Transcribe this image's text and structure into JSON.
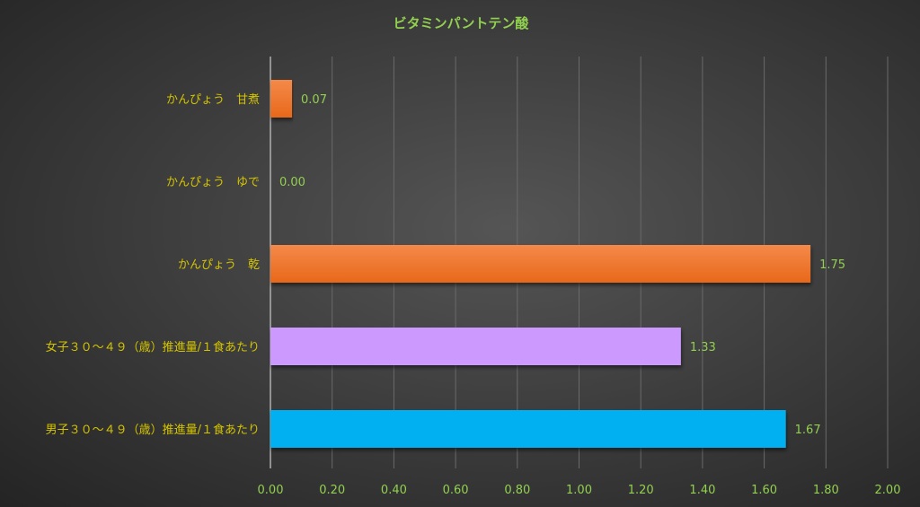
{
  "chart_data": {
    "type": "bar",
    "orientation": "horizontal",
    "title": "ビタミンパントテン酸",
    "categories": [
      "かんぴょう　甘煮",
      "かんぴょう　ゆで",
      "かんぴょう　乾",
      "女子３０～４９（歳）推進量/１食あたり",
      "男子３０～４９（歳）推進量/１食あたり"
    ],
    "values": [
      0.07,
      0.0,
      1.75,
      1.33,
      1.67
    ],
    "data_labels": [
      "0.07",
      "0.00",
      "1.75",
      "1.33",
      "1.67"
    ],
    "bar_colors": [
      "#ee7a30",
      "#ee7a30",
      "#ee7a30",
      "#cc99ff",
      "#00b0f0"
    ],
    "xlim": [
      0,
      2.0
    ],
    "xticks": [
      "0.00",
      "0.20",
      "0.40",
      "0.60",
      "0.80",
      "1.00",
      "1.20",
      "1.40",
      "1.60",
      "1.80",
      "2.00"
    ],
    "xlabel": "",
    "ylabel": "",
    "grid": true,
    "legend": "none",
    "colors": {
      "title": "#92d050",
      "category_text": "#d4c400",
      "tick_text": "#92d050",
      "label_text": "#92d050",
      "grid": "#6a6a6a"
    }
  }
}
